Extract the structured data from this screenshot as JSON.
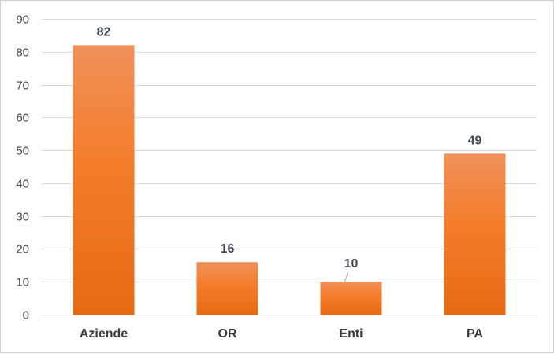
{
  "chart_data": {
    "type": "bar",
    "categories": [
      "Aziende",
      "OR",
      "Enti",
      "PA"
    ],
    "values": [
      82,
      16,
      10,
      49
    ],
    "data_labels": [
      "82",
      "16",
      "10",
      "49"
    ],
    "title": "",
    "xlabel": "",
    "ylabel": "",
    "ylim": [
      0,
      90
    ],
    "yticks": [
      0,
      10,
      20,
      30,
      40,
      50,
      60,
      70,
      80,
      90
    ],
    "ytick_labels": [
      "0",
      "10",
      "20",
      "30",
      "40",
      "50",
      "60",
      "70",
      "80",
      "90"
    ],
    "grid": true,
    "legend": "none",
    "colors": {
      "bar_top": "#f0915a",
      "bar_mid": "#f47c2a",
      "bar_bottom": "#e56a14",
      "grid": "#d9d9d9",
      "axis": "#bfbfbf"
    }
  }
}
